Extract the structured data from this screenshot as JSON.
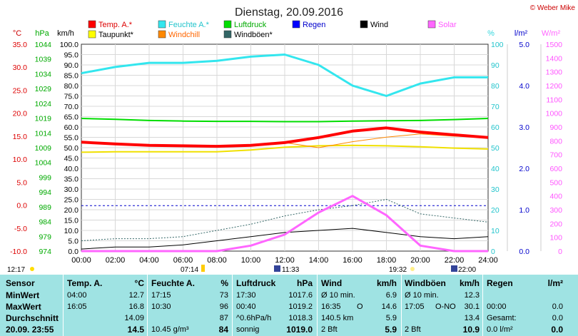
{
  "page_title": "Dienstag, 20.09.2016",
  "copyright": "© Weber Mike",
  "legend": [
    {
      "label": "Temp. A.*",
      "color": "#ff0000"
    },
    {
      "label": "Feuchte A.*",
      "color": "#33e6ee"
    },
    {
      "label": "Luftdruck",
      "color": "#00dd00"
    },
    {
      "label": "Regen",
      "color": "#0000ff"
    },
    {
      "label": "Wind",
      "color": "#000000"
    },
    {
      "label": "Solar",
      "color": "#ff66ff"
    },
    {
      "label": "Taupunkt*",
      "color": "#ffff00"
    },
    {
      "label": "Windchill",
      "color": "#ff8800"
    },
    {
      "label": "Windböen*",
      "color": "#336666"
    }
  ],
  "axis_units": {
    "temp": "°C",
    "pressure": "hPa",
    "wind": "km/h",
    "humidity": "%",
    "rain": "l/m²",
    "solar": "W/m²"
  },
  "times": {
    "left": "12:17",
    "sunrise": "07:14",
    "solar_noon": "11:33",
    "sunset": "19:32",
    "end": "22:00"
  },
  "chart_data": {
    "type": "line",
    "x": [
      "00:00",
      "02:00",
      "04:00",
      "06:00",
      "08:00",
      "10:00",
      "12:00",
      "14:00",
      "16:00",
      "18:00",
      "20:00",
      "22:00",
      "24:00"
    ],
    "axes": {
      "temp": {
        "label": "°C",
        "range": [
          -10,
          35
        ],
        "ticks": [
          "35.0",
          "30.0",
          "25.0",
          "20.0",
          "15.0",
          "10.0",
          "5.0",
          "0.0",
          "-5.0",
          "-10.0"
        ]
      },
      "pressure": {
        "label": "hPa",
        "range": [
          974,
          1044
        ],
        "ticks": [
          "1044",
          "1039",
          "1034",
          "1029",
          "1024",
          "1019",
          "1014",
          "1009",
          "1004",
          "999",
          "994",
          "989",
          "984",
          "979",
          "974"
        ]
      },
      "wind": {
        "label": "km/h",
        "range": [
          0,
          100
        ],
        "ticks": [
          "100.0",
          "95.0",
          "90.0",
          "85.0",
          "80.0",
          "75.0",
          "70.0",
          "65.0",
          "60.0",
          "55.0",
          "50.0",
          "45.0",
          "40.0",
          "35.0",
          "30.0",
          "25.0",
          "20.0",
          "15.0",
          "10.0",
          "5.0",
          "0.0"
        ]
      },
      "humidity": {
        "label": "%",
        "range": [
          0,
          100
        ],
        "ticks": [
          "100",
          "90",
          "80",
          "70",
          "60",
          "50",
          "40",
          "30",
          "20",
          "10",
          "0"
        ]
      },
      "rain": {
        "label": "l/m²",
        "range": [
          0,
          5
        ],
        "ticks": [
          "5.0",
          "4.0",
          "3.0",
          "2.0",
          "1.0",
          "0.0"
        ]
      },
      "solar": {
        "label": "W/m²",
        "range": [
          0,
          1500
        ],
        "ticks": [
          "1500",
          "1400",
          "1300",
          "1200",
          "1100",
          "1000",
          "900",
          "800",
          "700",
          "600",
          "500",
          "400",
          "300",
          "200",
          "100",
          "0"
        ]
      }
    },
    "series": [
      {
        "name": "Temp. A.*",
        "axis": "temp",
        "values": [
          13.7,
          13.3,
          13.0,
          12.9,
          12.8,
          13.0,
          13.6,
          14.7,
          16.1,
          16.8,
          15.9,
          15.3,
          14.7
        ]
      },
      {
        "name": "Feuchte A.*",
        "axis": "humidity",
        "values": [
          86,
          89,
          91,
          91,
          92,
          94,
          95,
          90,
          80,
          75,
          81,
          84,
          84
        ]
      },
      {
        "name": "Luftdruck",
        "axis": "pressure",
        "values": [
          1018.9,
          1018.6,
          1018.2,
          1018.0,
          1017.9,
          1017.9,
          1017.8,
          1017.8,
          1018.0,
          1018.1,
          1018.2,
          1018.5,
          1018.9
        ]
      },
      {
        "name": "Taupunkt*",
        "axis": "temp",
        "values": [
          11.5,
          11.6,
          11.6,
          11.6,
          11.6,
          12.0,
          12.6,
          12.9,
          13.0,
          12.9,
          12.7,
          12.4,
          12.2
        ]
      },
      {
        "name": "Windchill",
        "axis": "temp",
        "values": [
          13.7,
          13.3,
          13.0,
          12.9,
          12.8,
          13.0,
          13.6,
          12.5,
          13.8,
          14.8,
          15.5,
          15.0,
          14.7
        ]
      },
      {
        "name": "Wind",
        "axis": "wind",
        "values": [
          1,
          2,
          2,
          3,
          5,
          7,
          9,
          10,
          11,
          9,
          7,
          6,
          7
        ]
      },
      {
        "name": "Windböen*",
        "axis": "wind",
        "values": [
          5,
          6,
          6,
          7,
          10,
          13,
          17,
          20,
          22,
          25,
          18,
          16,
          14
        ]
      },
      {
        "name": "Solar",
        "axis": "solar",
        "values": [
          0,
          0,
          0,
          0,
          0,
          40,
          120,
          280,
          400,
          260,
          40,
          0,
          0
        ]
      }
    ],
    "rain_line": {
      "axis": "rain",
      "value": 1.1
    }
  },
  "stats": {
    "headers": {
      "sensor": "Sensor",
      "temp": "Temp. A.",
      "temp_unit": "°C",
      "hum": "Feuchte A.",
      "hum_unit": "%",
      "press": "Luftdruck",
      "press_unit": "hPa",
      "wind": "Wind",
      "wind_unit": "km/h",
      "gust": "Windböen",
      "gust_unit": "km/h",
      "rain": "Regen",
      "rain_unit": "l/m²"
    },
    "rows": [
      {
        "label": "MinWert",
        "temp_t": "04:00",
        "temp_v": "12.7",
        "hum_t": "17:15",
        "hum_v": "73",
        "press_t": "17:30",
        "press_v": "1017.6",
        "wind_t": "Ø 10 min.",
        "wind_v": "6.9",
        "gust_t": "Ø 10 min.",
        "gust_v": "12.3",
        "rain_t": "",
        "rain_v": ""
      },
      {
        "label": "MaxWert",
        "temp_t": "16:05",
        "temp_v": "16.8",
        "hum_t": "10:30",
        "hum_v": "96",
        "press_t": "00:40",
        "press_v": "1019.2",
        "wind_t": "16:35",
        "wind_dir": "O",
        "wind_v": "14.6",
        "gust_t": "17:05",
        "gust_dir": "O-NO",
        "gust_v": "30.1",
        "rain_t": "00:00",
        "rain_v": "0.0"
      },
      {
        "label": "Durchschnitt",
        "temp_t": "",
        "temp_v": "14.09",
        "hum_t": "",
        "hum_v": "87",
        "press_t": "^0.6hPa/h",
        "press_v": "1018.3",
        "wind_t": "140.5 km",
        "wind_v": "5.9",
        "gust_t": "",
        "gust_v": "13.4",
        "rain_t": "Gesamt:",
        "rain_v": "0.0"
      }
    ],
    "current": {
      "label": "20.09. 23:55",
      "temp_v": "14.5",
      "hum_t": "10.45 g/m³",
      "hum_v": "84",
      "press_t": "sonnig",
      "press_v": "1019.0",
      "wind_t": "2 Bft",
      "wind_v": "5.9",
      "gust_t": "2 Bft",
      "gust_v": "10.9",
      "rain_t": "0.0 l/m²",
      "rain_v": "0.0"
    }
  }
}
